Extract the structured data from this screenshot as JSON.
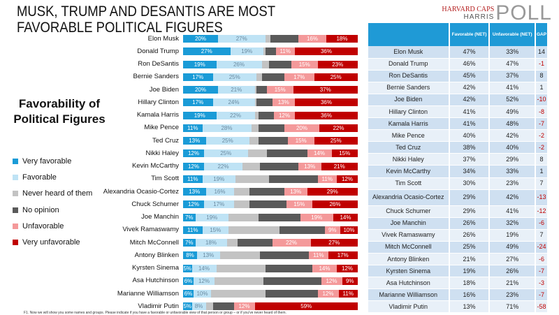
{
  "title": "MUSK, TRUMP AND DESANTIS ARE MOST FAVORABLE POLITICAL FIGURES",
  "logo": {
    "line1": "HARVARD CAPS",
    "line2": "HARRIS",
    "line3": "POLL"
  },
  "subtitle": "Favorability of Political Figures",
  "footnote": "F1. Now we will show you some names and groups. Please indicate if you have a favorable or unfavorable view of that person or group – or if you've never heard of them.",
  "colors": {
    "very_favorable": "#1a9bd7",
    "favorable": "#bfe3f5",
    "never_heard": "#c3c3c3",
    "no_opinion": "#5a5a5a",
    "unfavorable": "#f4999a",
    "very_unfavorable": "#c00000"
  },
  "table": {
    "headers": [
      "",
      "Favorable (NET)",
      "Unfavorable (NET)",
      "GAP"
    ],
    "rows": [
      [
        "Elon Musk",
        "47%",
        "33%",
        "14"
      ],
      [
        "Donald Trump",
        "46%",
        "47%",
        "-1"
      ],
      [
        "Ron DeSantis",
        "45%",
        "37%",
        "8"
      ],
      [
        "Bernie Sanders",
        "42%",
        "41%",
        "1"
      ],
      [
        "Joe Biden",
        "42%",
        "52%",
        "-10"
      ],
      [
        "Hillary Clinton",
        "41%",
        "49%",
        "-8"
      ],
      [
        "Kamala Harris",
        "41%",
        "48%",
        "-7"
      ],
      [
        "Mike Pence",
        "40%",
        "42%",
        "-2"
      ],
      [
        "Ted Cruz",
        "38%",
        "40%",
        "-2"
      ],
      [
        "Nikki Haley",
        "37%",
        "29%",
        "8"
      ],
      [
        "Kevin McCarthy",
        "34%",
        "33%",
        "1"
      ],
      [
        "Tim Scott",
        "30%",
        "23%",
        "7"
      ],
      [
        "Alexandria Ocasio-Cortez",
        "29%",
        "42%",
        "-13"
      ],
      [
        "Chuck Schumer",
        "29%",
        "41%",
        "-12"
      ],
      [
        "Joe Manchin",
        "26%",
        "32%",
        "-6"
      ],
      [
        "Vivek Ramaswamy",
        "26%",
        "19%",
        "7"
      ],
      [
        "Mitch McConnell",
        "25%",
        "49%",
        "-24"
      ],
      [
        "Antony Blinken",
        "21%",
        "27%",
        "-6"
      ],
      [
        "Kyrsten Sinema",
        "19%",
        "26%",
        "-7"
      ],
      [
        "Asa Hutchinson",
        "18%",
        "21%",
        "-3"
      ],
      [
        "Marianne Williamson",
        "16%",
        "23%",
        "-7"
      ],
      [
        "Vladimir Putin",
        "13%",
        "71%",
        "-58"
      ]
    ]
  },
  "chart_data": {
    "type": "bar",
    "stacked": true,
    "orientation": "horizontal",
    "title": "Favorability of Political Figures",
    "legend_position": "left",
    "unit": "%",
    "categories": [
      "Elon Musk",
      "Donald Trump",
      "Ron DeSantis",
      "Bernie Sanders",
      "Joe Biden",
      "Hillary Clinton",
      "Kamala Harris",
      "Mike Pence",
      "Ted Cruz",
      "Nikki Haley",
      "Kevin McCarthy",
      "Tim Scott",
      "Alexandria Ocasio-Cortez",
      "Chuck Schumer",
      "Joe Manchin",
      "Vivek Ramaswamy",
      "Mitch McConnell",
      "Antony Blinken",
      "Kyrsten Sinema",
      "Asa Hutchinson",
      "Marianne Williamson",
      "Vladimir Putin"
    ],
    "series": [
      {
        "name": "Very favorable",
        "key": "very_favorable",
        "labeled": true,
        "values": [
          20,
          27,
          19,
          17,
          20,
          17,
          19,
          11,
          13,
          12,
          12,
          11,
          13,
          12,
          7,
          11,
          7,
          8,
          5,
          6,
          6,
          5
        ]
      },
      {
        "name": "Favorable",
        "key": "favorable",
        "labeled": true,
        "values": [
          27,
          19,
          26,
          25,
          21,
          24,
          22,
          28,
          25,
          25,
          22,
          19,
          16,
          17,
          19,
          15,
          18,
          13,
          14,
          12,
          10,
          8
        ]
      },
      {
        "name": "Never heard of them",
        "key": "never_heard",
        "labeled": false,
        "values": [
          3,
          1,
          4,
          3,
          1,
          1,
          2,
          4,
          5,
          11,
          10,
          19,
          9,
          9,
          17,
          29,
          6,
          23,
          28,
          28,
          31,
          4
        ]
      },
      {
        "name": "No opinion",
        "key": "no_opinion",
        "labeled": false,
        "values": [
          16,
          6,
          13,
          13,
          6,
          9,
          9,
          15,
          17,
          23,
          22,
          28,
          20,
          21,
          24,
          26,
          20,
          28,
          27,
          33,
          30,
          12
        ]
      },
      {
        "name": "Unfavorable",
        "key": "unfavorable",
        "labeled": true,
        "values": [
          16,
          11,
          15,
          17,
          15,
          13,
          12,
          20,
          15,
          14,
          13,
          11,
          13,
          15,
          19,
          9,
          22,
          11,
          14,
          12,
          12,
          12
        ]
      },
      {
        "name": "Very unfavorable",
        "key": "very_unfavorable",
        "labeled": true,
        "values": [
          18,
          36,
          23,
          25,
          37,
          36,
          36,
          22,
          25,
          15,
          21,
          12,
          29,
          26,
          14,
          10,
          27,
          17,
          12,
          9,
          11,
          59
        ]
      }
    ]
  }
}
